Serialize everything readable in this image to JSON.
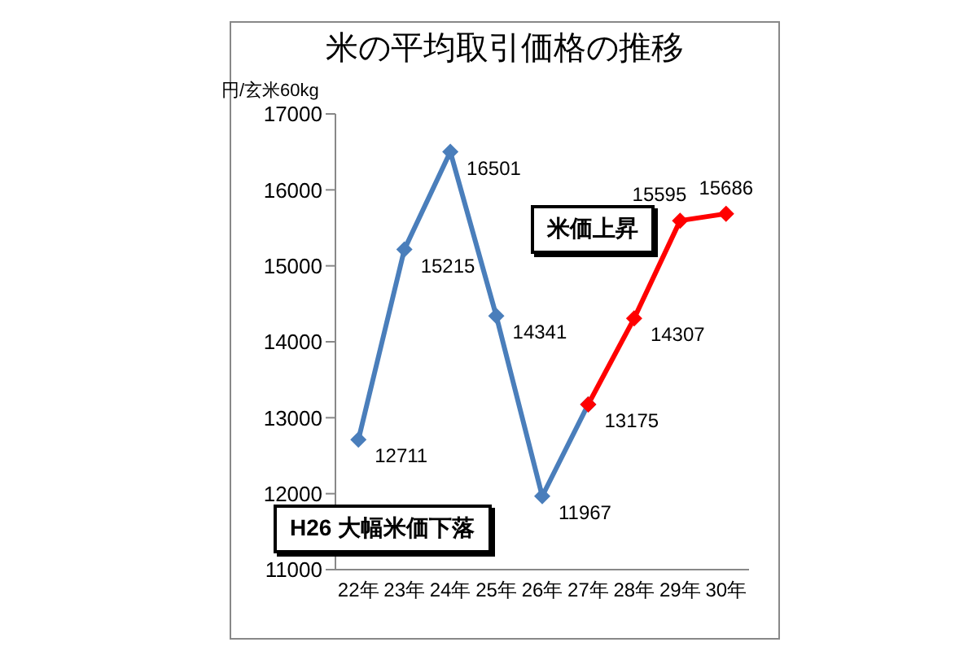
{
  "chart_data": {
    "type": "line",
    "title": "米の平均取引価格の推移",
    "ylabel": "円/玄米60kg",
    "categories": [
      "22年",
      "23年",
      "24年",
      "25年",
      "26年",
      "27年",
      "28年",
      "29年",
      "30年"
    ],
    "series": [
      {
        "color": "#4a7ebb",
        "values": [
          12711,
          15215,
          16501,
          14341,
          11967,
          13175,
          null,
          null,
          null
        ],
        "value_labels": [
          "12711",
          "15215",
          "16501",
          "14341",
          "11967",
          null,
          null,
          null,
          null
        ]
      },
      {
        "color": "#ff0000",
        "values": [
          null,
          null,
          null,
          null,
          null,
          13175,
          14307,
          15595,
          15686
        ],
        "value_labels": [
          null,
          null,
          null,
          null,
          null,
          "13175",
          "14307",
          "15595",
          "15686"
        ]
      }
    ],
    "ylim": [
      11000,
      17000
    ],
    "yticks": [
      11000,
      12000,
      13000,
      14000,
      15000,
      16000,
      17000
    ],
    "marker": "diamond",
    "line_style": "solid",
    "annotations": [
      "米価上昇",
      "H26 大幅米価下落"
    ]
  }
}
